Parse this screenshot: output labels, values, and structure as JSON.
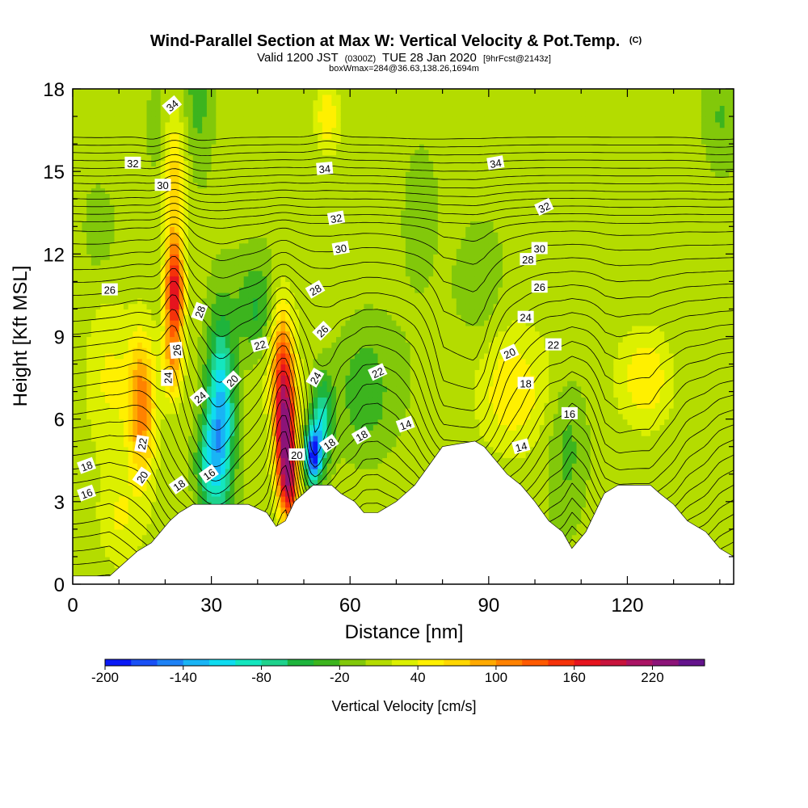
{
  "chart_data": {
    "type": "heatmap",
    "title": {
      "main": "Wind-Parallel Section at Max W: Vertical Velocity & Pot.Temp.",
      "mark": "(C)",
      "valid_prefix": "Valid 1200 JST",
      "valid_utc": "(0300Z)",
      "valid_date": "TUE 28 Jan 2020",
      "fcst": "[9hrFcst@2143z]",
      "box_info": "boxWmax=284@36.63,138.26,1694m"
    },
    "xlabel": "Distance [nm]",
    "ylabel": "Height [Kft MSL]",
    "xlim": [
      0,
      143
    ],
    "ylim": [
      0,
      18
    ],
    "xticks": [
      "0",
      "30",
      "60",
      "90",
      "120"
    ],
    "yticks": [
      "0",
      "3",
      "6",
      "9",
      "12",
      "15",
      "18"
    ],
    "colorbar": {
      "title": "Vertical Velocity [cm/s]",
      "labels": [
        "-200",
        "-140",
        "-80",
        "-20",
        "40",
        "100",
        "160",
        "220"
      ],
      "levels": [
        -200,
        -180,
        -160,
        -140,
        -120,
        -100,
        -80,
        -60,
        -40,
        -20,
        0,
        20,
        40,
        60,
        80,
        100,
        120,
        140,
        160,
        180,
        200,
        220,
        240
      ],
      "colors": [
        "#0a19f5",
        "#1950f5",
        "#1e82f5",
        "#19b4f5",
        "#0fdcf0",
        "#14e6be",
        "#1ed28c",
        "#1eb43c",
        "#3cb41e",
        "#82c80a",
        "#b4dc00",
        "#dcf000",
        "#fff000",
        "#ffd700",
        "#ffaa00",
        "#ff8200",
        "#ff5a00",
        "#f5320a",
        "#e6141e",
        "#c8143c",
        "#aa1464",
        "#8c1478",
        "#64148c"
      ]
    },
    "terrain_kft": [
      [
        0,
        0.3
      ],
      [
        8,
        0.3
      ],
      [
        10,
        0.6
      ],
      [
        12,
        0.9
      ],
      [
        14,
        1.2
      ],
      [
        17,
        1.5
      ],
      [
        19,
        1.9
      ],
      [
        21,
        2.3
      ],
      [
        23,
        2.6
      ],
      [
        26,
        2.9
      ],
      [
        38,
        2.9
      ],
      [
        42,
        2.6
      ],
      [
        44,
        2.1
      ],
      [
        46,
        2.3
      ],
      [
        48,
        3.0
      ],
      [
        50,
        3.3
      ],
      [
        52,
        3.6
      ],
      [
        56,
        3.6
      ],
      [
        58,
        3.3
      ],
      [
        61,
        3.0
      ],
      [
        63,
        2.6
      ],
      [
        66,
        2.6
      ],
      [
        70,
        3.0
      ],
      [
        74,
        3.6
      ],
      [
        77,
        4.3
      ],
      [
        80,
        5.0
      ],
      [
        87,
        5.2
      ],
      [
        89,
        5.0
      ],
      [
        91,
        4.6
      ],
      [
        94,
        4.0
      ],
      [
        97,
        3.6
      ],
      [
        100,
        3.0
      ],
      [
        103,
        2.3
      ],
      [
        106,
        1.9
      ],
      [
        108,
        1.3
      ],
      [
        111,
        1.9
      ],
      [
        113,
        2.6
      ],
      [
        115,
        3.3
      ],
      [
        118,
        3.6
      ],
      [
        125,
        3.6
      ],
      [
        127,
        3.3
      ],
      [
        130,
        2.9
      ],
      [
        133,
        2.3
      ],
      [
        135,
        2.1
      ],
      [
        137,
        1.9
      ],
      [
        140,
        1.3
      ],
      [
        143,
        1.0
      ]
    ],
    "vertical_velocity_cells": [
      {
        "x": 22,
        "y": 10.5,
        "sx": 2.0,
        "sy": 1.9,
        "w": 170
      },
      {
        "x": 22,
        "y": 14.5,
        "sx": 2.5,
        "sy": 2.5,
        "w": 60
      },
      {
        "x": 21.5,
        "y": 7.8,
        "sx": 2.2,
        "sy": 1.3,
        "w": 70
      },
      {
        "x": 15,
        "y": 6.5,
        "sx": 3.0,
        "sy": 2.6,
        "w": 110
      },
      {
        "x": 8,
        "y": 7.5,
        "sx": 5.0,
        "sy": 3.0,
        "w": 40
      },
      {
        "x": 46,
        "y": 5.5,
        "sx": 2.2,
        "sy": 2.4,
        "w": 220
      },
      {
        "x": 45,
        "y": 8.5,
        "sx": 2.6,
        "sy": 2.2,
        "w": 90
      },
      {
        "x": 47,
        "y": 3.5,
        "sx": 1.8,
        "sy": 1.2,
        "w": 110
      },
      {
        "x": 55,
        "y": 17,
        "sx": 2.5,
        "sy": 1.3,
        "w": 50
      },
      {
        "x": 95,
        "y": 7,
        "sx": 7.0,
        "sy": 2.0,
        "w": 45
      },
      {
        "x": 124,
        "y": 7.5,
        "sx": 6.0,
        "sy": 1.8,
        "w": 55
      },
      {
        "x": 10,
        "y": 2.5,
        "sx": 4.0,
        "sy": 1.5,
        "w": 30
      },
      {
        "x": 32,
        "y": 6.0,
        "sx": 3.0,
        "sy": 3.5,
        "w": -145
      },
      {
        "x": 29,
        "y": 4.3,
        "sx": 2.5,
        "sy": 1.6,
        "w": -70
      },
      {
        "x": 52,
        "y": 4.7,
        "sx": 1.8,
        "sy": 1.0,
        "w": -190
      },
      {
        "x": 54,
        "y": 6.0,
        "sx": 2.4,
        "sy": 1.6,
        "w": -90
      },
      {
        "x": 40,
        "y": 10,
        "sx": 5.0,
        "sy": 1.8,
        "w": -55
      },
      {
        "x": 63,
        "y": 7.0,
        "sx": 6.0,
        "sy": 2.2,
        "w": -40
      },
      {
        "x": 107,
        "y": 5.0,
        "sx": 4.0,
        "sy": 2.5,
        "w": -35
      },
      {
        "x": 27,
        "y": 18,
        "sx": 3.0,
        "sy": 3.0,
        "w": -40
      },
      {
        "x": 18,
        "y": 16.5,
        "sx": 2.2,
        "sy": 1.5,
        "w": -35
      },
      {
        "x": 88,
        "y": 11,
        "sx": 5.0,
        "sy": 2.0,
        "w": -25
      },
      {
        "x": 140,
        "y": 17,
        "sx": 4.0,
        "sy": 2.0,
        "w": -30
      },
      {
        "x": 6,
        "y": 13,
        "sx": 4.0,
        "sy": 2.0,
        "w": -20
      },
      {
        "x": 75,
        "y": 14,
        "sx": 5.0,
        "sy": 3.0,
        "w": -20
      }
    ],
    "theta_contour_levels": [
      -3,
      -2,
      -1,
      0,
      1,
      2,
      3,
      4,
      5,
      6,
      7,
      8,
      9,
      10,
      11,
      12,
      13,
      14,
      15,
      16,
      17,
      18,
      19,
      20,
      21,
      22,
      23,
      24,
      25,
      26,
      27,
      28,
      29,
      30,
      31,
      32,
      33,
      34,
      35,
      36
    ],
    "theta_contour_labels": [
      {
        "text": "34",
        "x": 21.5,
        "y": 17.4,
        "angle": -40
      },
      {
        "text": "32",
        "x": 13,
        "y": 15.3,
        "angle": 0
      },
      {
        "text": "30",
        "x": 19.5,
        "y": 14.5,
        "angle": 0
      },
      {
        "text": "34",
        "x": 54.5,
        "y": 15.1,
        "angle": -5
      },
      {
        "text": "34",
        "x": 91.5,
        "y": 15.3,
        "angle": -10
      },
      {
        "text": "32",
        "x": 57,
        "y": 13.3,
        "angle": -10
      },
      {
        "text": "32",
        "x": 102,
        "y": 13.7,
        "angle": -25
      },
      {
        "text": "30",
        "x": 58,
        "y": 12.2,
        "angle": -10
      },
      {
        "text": "30",
        "x": 101,
        "y": 12.2,
        "angle": 0
      },
      {
        "text": "28",
        "x": 98.5,
        "y": 11.8,
        "angle": 0
      },
      {
        "text": "28",
        "x": 52.5,
        "y": 10.7,
        "angle": -30
      },
      {
        "text": "26",
        "x": 8,
        "y": 10.7,
        "angle": 0
      },
      {
        "text": "26",
        "x": 101,
        "y": 10.8,
        "angle": 0
      },
      {
        "text": "28",
        "x": 27.5,
        "y": 9.9,
        "angle": -70
      },
      {
        "text": "24",
        "x": 98,
        "y": 9.7,
        "angle": 0
      },
      {
        "text": "26",
        "x": 54,
        "y": 9.2,
        "angle": -45
      },
      {
        "text": "22",
        "x": 40.5,
        "y": 8.7,
        "angle": -15
      },
      {
        "text": "22",
        "x": 104,
        "y": 8.7,
        "angle": 0
      },
      {
        "text": "26",
        "x": 22.5,
        "y": 8.5,
        "angle": -95
      },
      {
        "text": "20",
        "x": 94.5,
        "y": 8.4,
        "angle": -25
      },
      {
        "text": "22",
        "x": 66,
        "y": 7.7,
        "angle": -25
      },
      {
        "text": "20",
        "x": 34.5,
        "y": 7.4,
        "angle": -45
      },
      {
        "text": "24",
        "x": 52.5,
        "y": 7.5,
        "angle": -60
      },
      {
        "text": "24",
        "x": 20.5,
        "y": 7.5,
        "angle": -90
      },
      {
        "text": "18",
        "x": 98,
        "y": 7.3,
        "angle": 0
      },
      {
        "text": "24",
        "x": 27.5,
        "y": 6.8,
        "angle": -40
      },
      {
        "text": "16",
        "x": 107.5,
        "y": 6.2,
        "angle": 0
      },
      {
        "text": "14",
        "x": 72,
        "y": 5.8,
        "angle": -20
      },
      {
        "text": "22",
        "x": 15,
        "y": 5.1,
        "angle": -80
      },
      {
        "text": "18",
        "x": 62.5,
        "y": 5.4,
        "angle": -30
      },
      {
        "text": "18",
        "x": 55.5,
        "y": 5.1,
        "angle": -35
      },
      {
        "text": "14",
        "x": 97,
        "y": 5.0,
        "angle": -15
      },
      {
        "text": "20",
        "x": 48.5,
        "y": 4.7,
        "angle": 0
      },
      {
        "text": "18",
        "x": 3,
        "y": 4.3,
        "angle": -20
      },
      {
        "text": "20",
        "x": 15,
        "y": 3.9,
        "angle": -55
      },
      {
        "text": "18",
        "x": 23,
        "y": 3.6,
        "angle": -35
      },
      {
        "text": "16",
        "x": 29.5,
        "y": 4.0,
        "angle": -35
      },
      {
        "text": "16",
        "x": 3,
        "y": 3.3,
        "angle": -20
      }
    ]
  }
}
